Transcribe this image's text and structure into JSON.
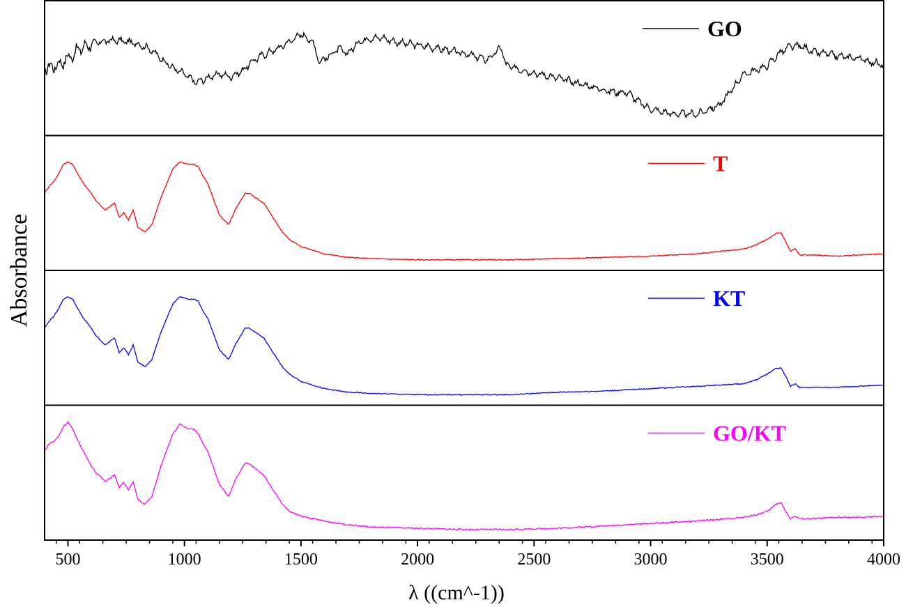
{
  "chart_data": {
    "type": "line",
    "title": "",
    "xlabel": "λ ((cm^-1))",
    "ylabel": "Absorbance",
    "xlim": [
      400,
      4000
    ],
    "x_ticks": [
      "500",
      "1000",
      "1500",
      "2000",
      "2500",
      "3000",
      "3500",
      "4000"
    ],
    "y_ticks_shown": false,
    "grid": false,
    "layout": "stacked panels sharing x axis",
    "legend_position": "top-right of each panel",
    "panels": [
      {
        "name": "GO",
        "color": "#000000",
        "ylim": [
          0,
          1
        ],
        "noise": 0.035,
        "x": [
          400,
          450,
          500,
          550,
          600,
          650,
          700,
          750,
          800,
          850,
          900,
          950,
          1000,
          1050,
          1100,
          1150,
          1200,
          1250,
          1300,
          1350,
          1400,
          1450,
          1500,
          1550,
          1580,
          1620,
          1660,
          1700,
          1750,
          1800,
          1850,
          1900,
          2000,
          2100,
          2200,
          2300,
          2330,
          2360,
          2380,
          2400,
          2500,
          2600,
          2700,
          2800,
          2850,
          2900,
          2950,
          3000,
          3100,
          3200,
          3300,
          3350,
          3400,
          3450,
          3500,
          3550,
          3600,
          3650,
          3700,
          3750,
          3800,
          3850,
          3900,
          3950,
          4000
        ],
        "y": [
          0.5,
          0.52,
          0.58,
          0.66,
          0.7,
          0.72,
          0.73,
          0.72,
          0.7,
          0.66,
          0.58,
          0.5,
          0.45,
          0.38,
          0.42,
          0.45,
          0.43,
          0.48,
          0.57,
          0.62,
          0.66,
          0.72,
          0.78,
          0.72,
          0.55,
          0.6,
          0.66,
          0.62,
          0.72,
          0.75,
          0.75,
          0.72,
          0.69,
          0.66,
          0.62,
          0.57,
          0.62,
          0.67,
          0.52,
          0.51,
          0.46,
          0.42,
          0.37,
          0.32,
          0.3,
          0.3,
          0.22,
          0.16,
          0.12,
          0.12,
          0.2,
          0.33,
          0.45,
          0.48,
          0.52,
          0.62,
          0.68,
          0.68,
          0.63,
          0.62,
          0.6,
          0.59,
          0.58,
          0.55,
          0.52
        ]
      },
      {
        "name": "T",
        "color": "#ff0000",
        "ylim": [
          0,
          1
        ],
        "noise": 0.008,
        "x": [
          400,
          420,
          440,
          460,
          480,
          500,
          520,
          540,
          560,
          600,
          620,
          660,
          700,
          720,
          740,
          760,
          780,
          800,
          830,
          860,
          900,
          950,
          980,
          1000,
          1020,
          1040,
          1060,
          1080,
          1100,
          1150,
          1190,
          1220,
          1260,
          1280,
          1300,
          1340,
          1380,
          1420,
          1450,
          1500,
          1600,
          1700,
          1800,
          2000,
          2200,
          2400,
          2600,
          2800,
          3000,
          3200,
          3400,
          3450,
          3500,
          3540,
          3560,
          3580,
          3600,
          3620,
          3640,
          3700,
          3800,
          3900,
          4000
        ],
        "y": [
          0.58,
          0.64,
          0.68,
          0.74,
          0.82,
          0.84,
          0.82,
          0.75,
          0.68,
          0.58,
          0.52,
          0.44,
          0.5,
          0.38,
          0.42,
          0.36,
          0.44,
          0.3,
          0.26,
          0.32,
          0.55,
          0.78,
          0.84,
          0.83,
          0.82,
          0.82,
          0.8,
          0.72,
          0.66,
          0.4,
          0.32,
          0.45,
          0.58,
          0.58,
          0.55,
          0.5,
          0.38,
          0.26,
          0.2,
          0.14,
          0.08,
          0.05,
          0.04,
          0.03,
          0.03,
          0.03,
          0.04,
          0.05,
          0.06,
          0.08,
          0.12,
          0.15,
          0.2,
          0.25,
          0.25,
          0.18,
          0.1,
          0.12,
          0.07,
          0.07,
          0.06,
          0.07,
          0.08
        ]
      },
      {
        "name": "KT",
        "color": "#0000ff",
        "ylim": [
          0,
          1
        ],
        "noise": 0.008,
        "x": [
          400,
          420,
          440,
          460,
          480,
          500,
          520,
          540,
          560,
          600,
          620,
          660,
          700,
          720,
          740,
          760,
          780,
          800,
          830,
          860,
          900,
          950,
          980,
          1000,
          1020,
          1040,
          1060,
          1080,
          1100,
          1150,
          1190,
          1220,
          1260,
          1280,
          1300,
          1340,
          1380,
          1420,
          1450,
          1500,
          1600,
          1700,
          1800,
          2000,
          2200,
          2400,
          2600,
          2800,
          3000,
          3200,
          3400,
          3450,
          3500,
          3540,
          3560,
          3580,
          3600,
          3620,
          3640,
          3700,
          3800,
          3900,
          4000
        ],
        "y": [
          0.58,
          0.64,
          0.68,
          0.74,
          0.82,
          0.84,
          0.82,
          0.75,
          0.68,
          0.58,
          0.52,
          0.44,
          0.5,
          0.38,
          0.42,
          0.36,
          0.44,
          0.3,
          0.26,
          0.32,
          0.55,
          0.78,
          0.84,
          0.83,
          0.82,
          0.82,
          0.8,
          0.72,
          0.66,
          0.4,
          0.32,
          0.45,
          0.58,
          0.58,
          0.55,
          0.5,
          0.38,
          0.26,
          0.2,
          0.14,
          0.08,
          0.05,
          0.04,
          0.03,
          0.03,
          0.03,
          0.05,
          0.06,
          0.08,
          0.1,
          0.12,
          0.15,
          0.2,
          0.25,
          0.25,
          0.18,
          0.1,
          0.12,
          0.09,
          0.09,
          0.09,
          0.1,
          0.11
        ]
      },
      {
        "name": "GO/KT",
        "color": "#ff00ff",
        "ylim": [
          0,
          1
        ],
        "noise": 0.012,
        "x": [
          400,
          420,
          440,
          460,
          480,
          500,
          520,
          540,
          560,
          600,
          620,
          660,
          700,
          720,
          740,
          760,
          780,
          800,
          830,
          860,
          900,
          950,
          980,
          1000,
          1020,
          1040,
          1060,
          1080,
          1100,
          1150,
          1190,
          1220,
          1260,
          1280,
          1300,
          1340,
          1380,
          1420,
          1450,
          1500,
          1600,
          1700,
          1800,
          2000,
          2200,
          2400,
          2600,
          2800,
          3000,
          3200,
          3400,
          3450,
          3500,
          3540,
          3560,
          3580,
          3600,
          3620,
          3640,
          3700,
          3800,
          3900,
          4000
        ],
        "y": [
          0.68,
          0.74,
          0.76,
          0.8,
          0.88,
          0.92,
          0.86,
          0.78,
          0.7,
          0.56,
          0.5,
          0.43,
          0.48,
          0.38,
          0.42,
          0.36,
          0.42,
          0.28,
          0.24,
          0.3,
          0.56,
          0.82,
          0.9,
          0.88,
          0.86,
          0.86,
          0.82,
          0.74,
          0.68,
          0.4,
          0.3,
          0.45,
          0.58,
          0.57,
          0.54,
          0.48,
          0.36,
          0.24,
          0.18,
          0.14,
          0.1,
          0.07,
          0.05,
          0.04,
          0.03,
          0.03,
          0.04,
          0.06,
          0.08,
          0.1,
          0.13,
          0.15,
          0.18,
          0.24,
          0.25,
          0.18,
          0.12,
          0.14,
          0.12,
          0.12,
          0.13,
          0.13,
          0.14
        ]
      }
    ]
  }
}
